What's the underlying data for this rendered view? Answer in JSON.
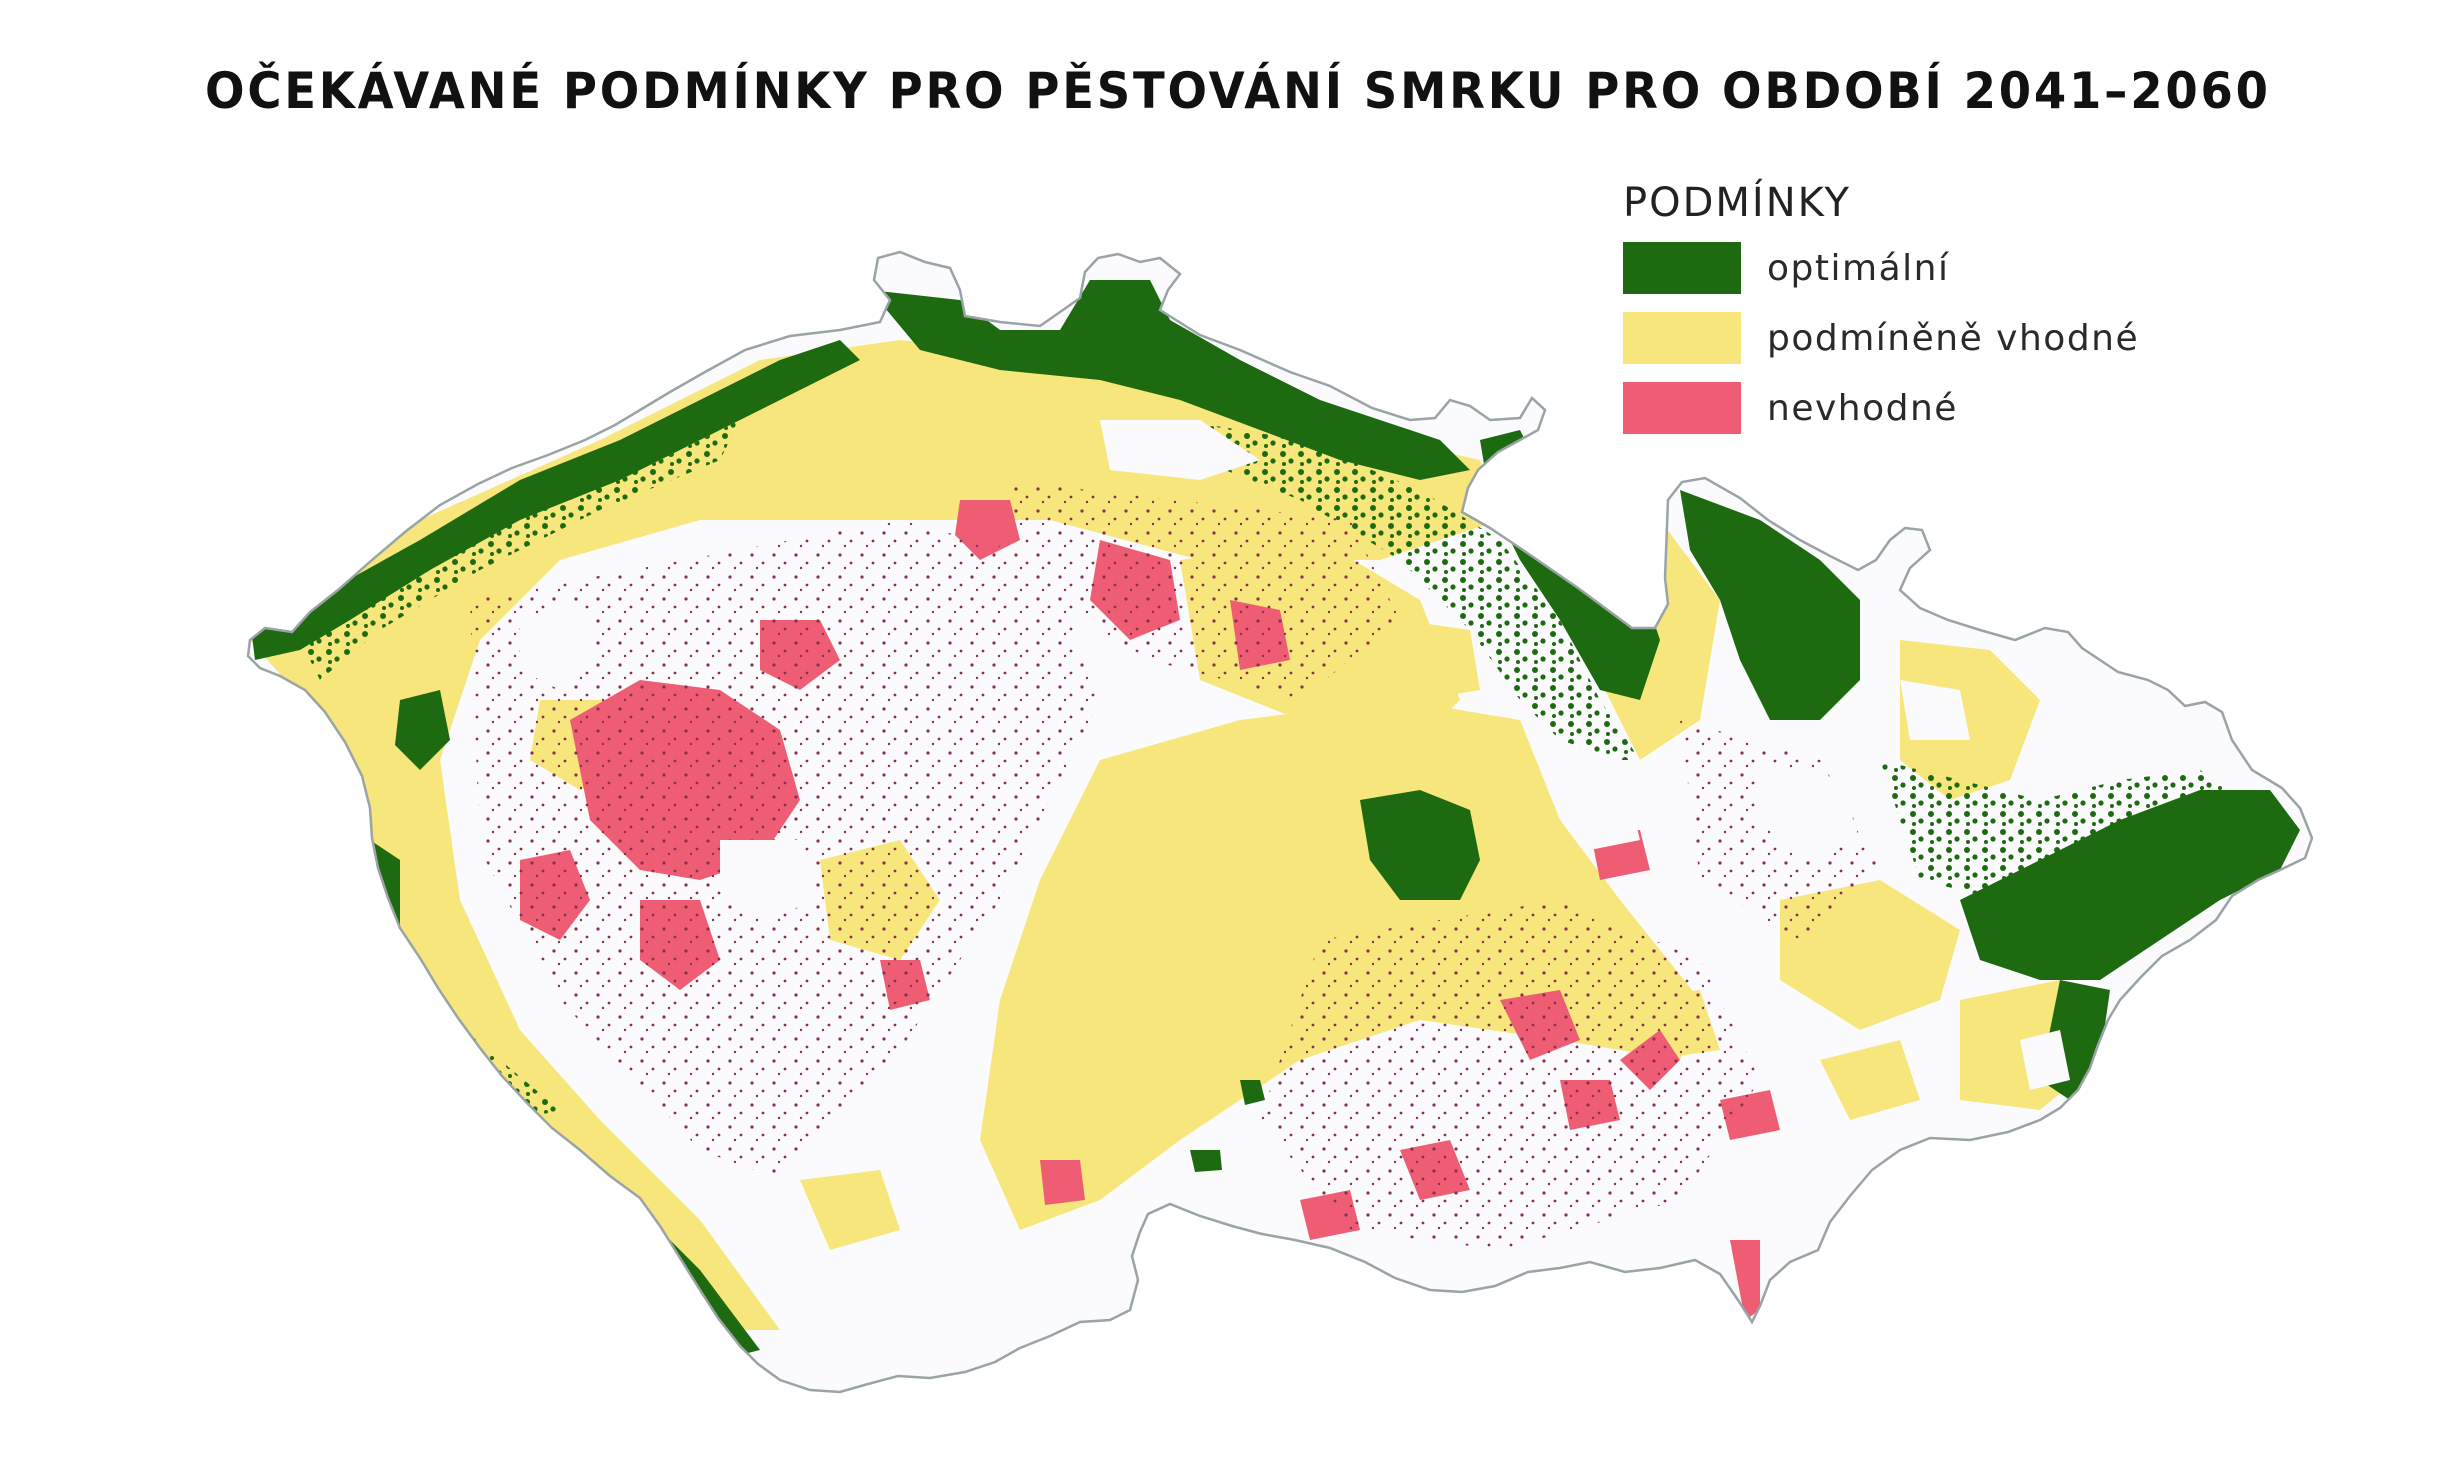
{
  "title": "OČEKÁVANÉ PODMÍNKY PRO PĚSTOVÁNÍ SMRKU PRO OBDOBÍ 2041–2060",
  "legend": {
    "title": "PODMÍNKY",
    "items": [
      {
        "label": "optimální",
        "color": "#1e6a10"
      },
      {
        "label": "podmíněně vhodné",
        "color": "#f7e67c"
      },
      {
        "label": "nevhodné",
        "color": "#ef5d74"
      }
    ]
  },
  "colors": {
    "map_background": "#fbfbfd",
    "map_outline": "#9aa3a6",
    "speckle": "#8a2f4e"
  }
}
